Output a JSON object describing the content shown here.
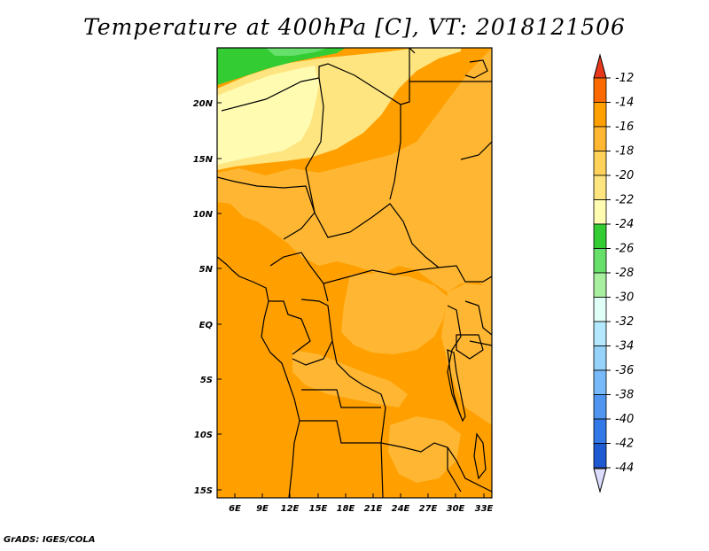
{
  "title": "Temperature at 400hPa [C], VT: 2018121506",
  "footer": "GrADS: IGES/COLA",
  "map": {
    "variable": "Temperature",
    "level": "400hPa",
    "units": "C",
    "valid_time": "2018121506",
    "lat_ticks": [
      "20N",
      "15N",
      "10N",
      "5N",
      "EQ",
      "5S",
      "10S",
      "15S"
    ],
    "lon_ticks": [
      "6E",
      "9E",
      "12E",
      "15E",
      "18E",
      "21E",
      "24E",
      "27E",
      "30E",
      "33E"
    ]
  },
  "colorbar": {
    "labels": [
      "-12",
      "-14",
      "-16",
      "-18",
      "-20",
      "-22",
      "-24",
      "-26",
      "-28",
      "-30",
      "-32",
      "-34",
      "-36",
      "-38",
      "-40",
      "-42",
      "-44"
    ],
    "colors": {
      "top_arrow": "#e8381c",
      "bins": [
        "#ff6a00",
        "#ff9f00",
        "#ffb733",
        "#ffd25a",
        "#ffe580",
        "#fffcb2",
        "#33cc33",
        "#66e06a",
        "#a8f0a0",
        "#e0fff7",
        "#b4e8ff",
        "#96d2fa",
        "#78b9fa",
        "#5096f0",
        "#3278e6",
        "#1e5ad2",
        "#14288c"
      ],
      "bottom_arrow": "#dcdcff"
    }
  },
  "colors": {
    "c_minus14": "#ff9f00",
    "c_minus16": "#ffb733",
    "c_minus18": "#ffe580",
    "c_minus20": "#fffcb2",
    "c_minus24": "#33cc33",
    "c_minus26": "#66e06a",
    "border": "#000000"
  }
}
